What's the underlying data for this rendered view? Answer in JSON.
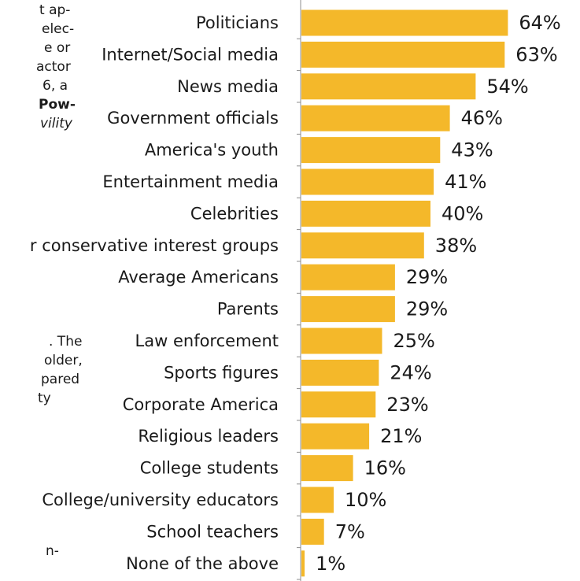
{
  "chart_data": {
    "type": "bar",
    "orientation": "horizontal",
    "categories": [
      "Politicians",
      "Internet/Social media",
      "News media",
      "Government officials",
      "America's youth",
      "Entertainment media",
      "Celebrities",
      "r conservative interest groups",
      "Average Americans",
      "Parents",
      "Law enforcement",
      "Sports figures",
      "Corporate America",
      "Religious leaders",
      "College students",
      "College/university educators",
      "School teachers",
      "None of the above"
    ],
    "values": [
      64,
      63,
      54,
      46,
      43,
      41,
      40,
      38,
      29,
      29,
      25,
      24,
      23,
      21,
      16,
      10,
      7,
      1
    ],
    "value_labels": [
      "64%",
      "63%",
      "54%",
      "46%",
      "43%",
      "41%",
      "40%",
      "38%",
      "29%",
      "29%",
      "25%",
      "24%",
      "23%",
      "21%",
      "16%",
      "10%",
      "7%",
      "1%"
    ],
    "unit": "%",
    "xlim": [
      0,
      70
    ],
    "bar_color": "#F4B82A",
    "grid": false,
    "legend": "none"
  },
  "side_text": {
    "top": [
      "t ap-",
      "elec-",
      "e or",
      "actor",
      "6, a",
      "Pow-",
      "vility"
    ],
    "middle": [
      ". The",
      "older,",
      "pared",
      "ty"
    ],
    "bottom": [
      "n-"
    ]
  }
}
